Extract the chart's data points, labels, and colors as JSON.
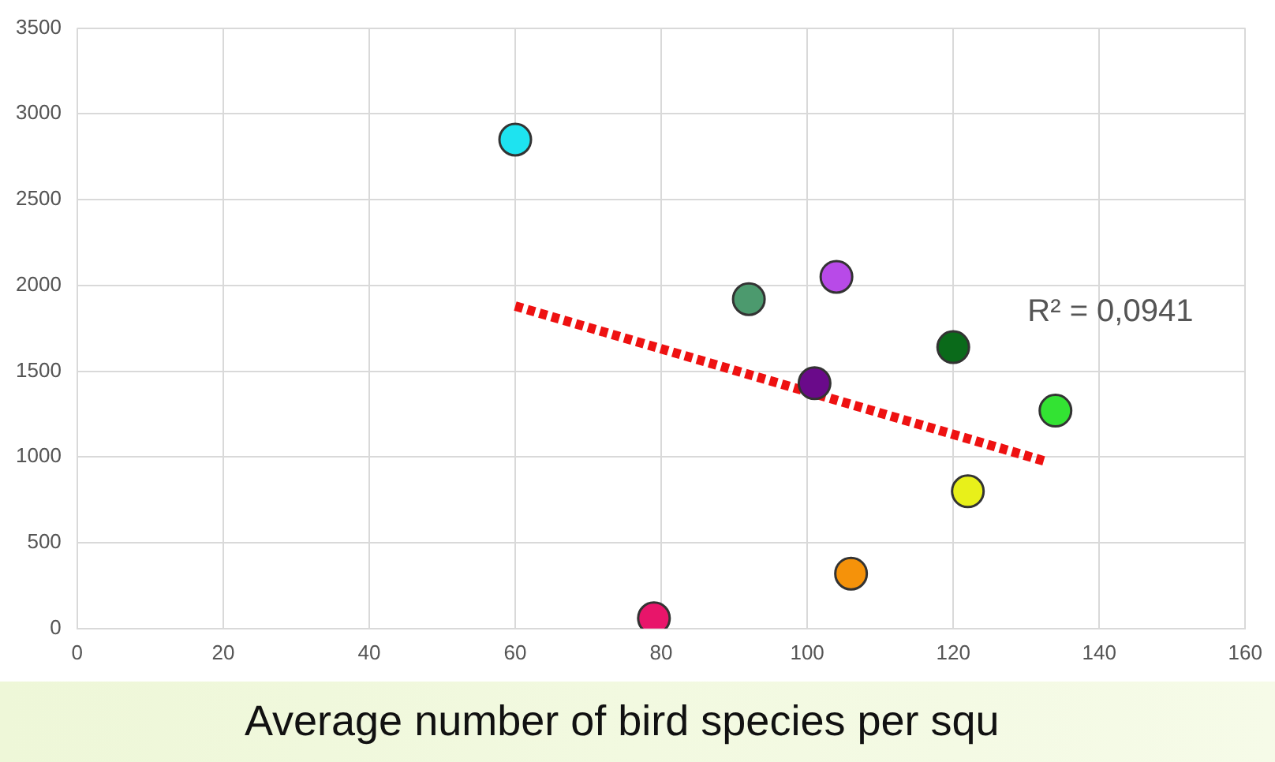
{
  "chart_data": {
    "type": "scatter",
    "xlabel": "Average number of bird species per squ",
    "x": [
      60,
      92,
      104,
      101,
      120,
      134,
      122,
      106,
      79
    ],
    "series": [
      {
        "values": [
          2850,
          1920,
          2050,
          1430,
          1640,
          1270,
          800,
          320,
          60
        ],
        "colors": [
          "#1ee3f0",
          "#4c9a6e",
          "#b84ae8",
          "#6a0a8a",
          "#0a6a1a",
          "#33e333",
          "#e8f01a",
          "#f5920a",
          "#e8156a"
        ]
      },
      {
        "type": "line",
        "x": [
          60,
          133
        ],
        "values": [
          1880,
          970
        ],
        "color": "#ee1111",
        "line_style": "dotted",
        "marker": "none"
      }
    ],
    "annotations": [
      "R² = 0,0941"
    ],
    "xlim": [
      0,
      160
    ],
    "xticks": [
      0,
      20,
      40,
      60,
      80,
      100,
      120,
      140,
      160
    ],
    "ylim": [
      0,
      3500
    ],
    "yticks": [
      0,
      500,
      1000,
      1500,
      2000,
      2500,
      3000,
      3500
    ],
    "grid": true,
    "legend": false,
    "marker": "circle"
  }
}
